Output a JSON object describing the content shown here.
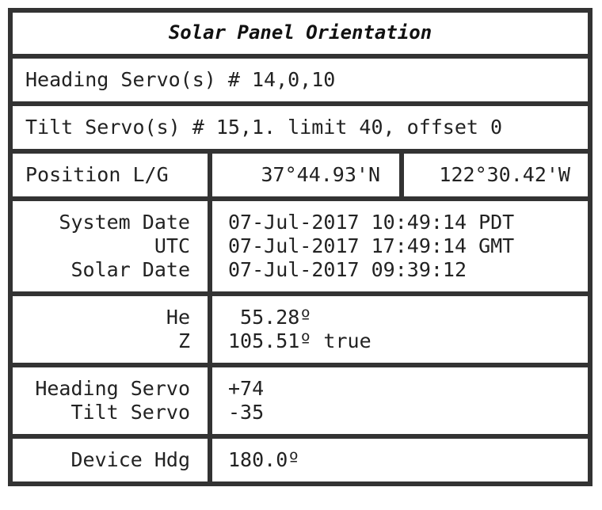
{
  "title": "Solar Panel Orientation",
  "heading_servos": "Heading Servo(s) # 14,0,10",
  "tilt_servos": "Tilt Servo(s) # 15,1. limit 40, offset 0",
  "position": {
    "label": "Position L/G",
    "latitude": "37°44.93'N",
    "longitude": "122°30.42'W"
  },
  "dates": {
    "labels": [
      "System Date",
      "UTC",
      "Solar Date"
    ],
    "values": [
      "07-Jul-2017 10:49:14 PDT",
      "07-Jul-2017 17:49:14 GMT",
      "07-Jul-2017 09:39:12"
    ]
  },
  "sun": {
    "labels": [
      "He",
      "Z"
    ],
    "values": [
      " 55.28º",
      "105.51º true"
    ]
  },
  "servos": {
    "labels": [
      "Heading Servo",
      "Tilt Servo"
    ],
    "values": [
      "+74",
      "-35"
    ]
  },
  "device": {
    "label": "Device Hdg",
    "value": "180.0º"
  },
  "colors": {
    "border": "#333333",
    "text": "#222222",
    "background": "#ffffff"
  }
}
